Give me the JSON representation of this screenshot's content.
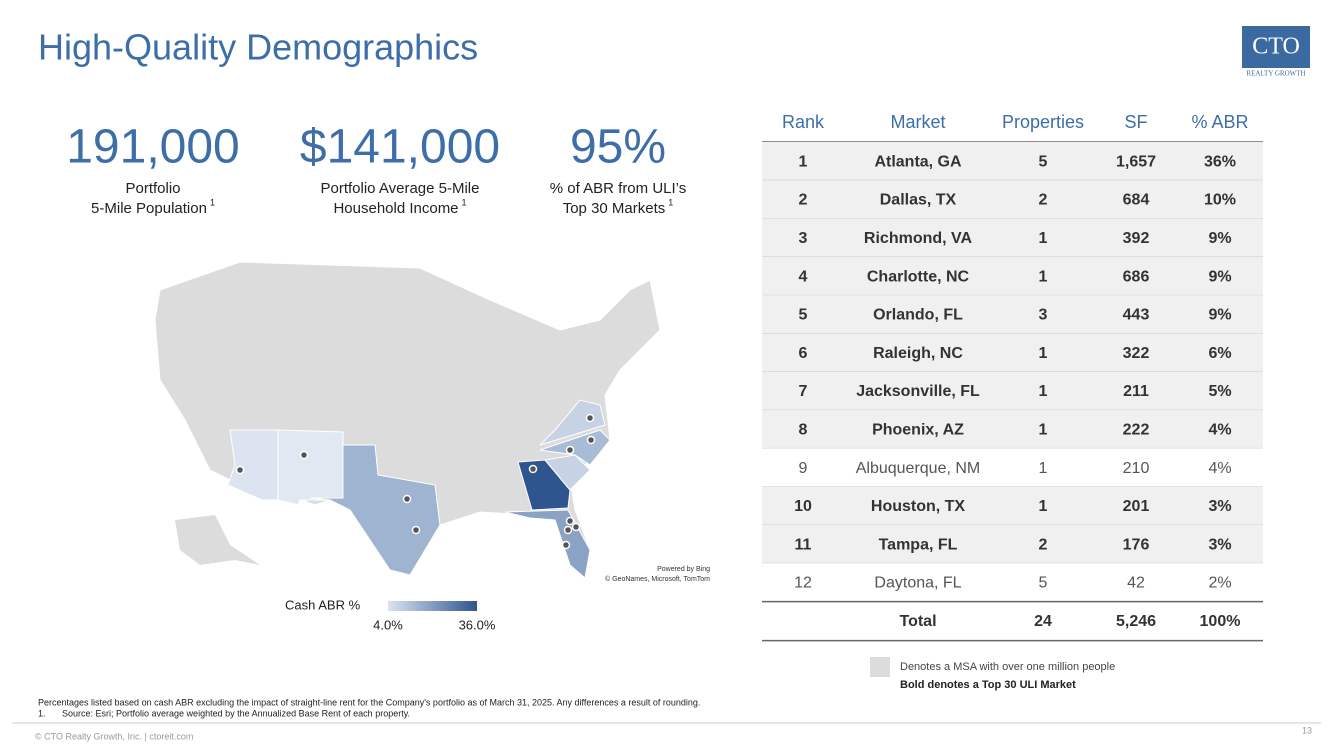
{
  "header": {
    "title": "High-Quality Demographics",
    "logo": "CTO",
    "logo_sub": "REALTY GROWTH"
  },
  "stats": [
    {
      "value": "191,000",
      "line1": "Portfolio",
      "line2": "5-Mile Population",
      "sup": "1"
    },
    {
      "value": "$141,000",
      "line1": "Portfolio Average 5-Mile",
      "line2": "Household Income",
      "sup": "1"
    },
    {
      "value": "95%",
      "line1": "% of ABR from ULI’s",
      "line2": "Top 30 Markets",
      "sup": "1"
    }
  ],
  "map": {
    "legend_title": "Cash ABR %",
    "legend_min": "4.0%",
    "legend_max": "36.0%",
    "attribution1": "Powered by Bing",
    "attribution2": "© GeoNames, Microsoft, TomTom"
  },
  "table": {
    "columns": [
      "Rank",
      "Market",
      "Properties",
      "SF",
      "% ABR"
    ],
    "rows": [
      {
        "cells": [
          "1",
          "Atlanta, GA",
          "5",
          "1,657",
          "36%"
        ],
        "bold": true
      },
      {
        "cells": [
          "2",
          "Dallas, TX",
          "2",
          "684",
          "10%"
        ],
        "bold": true
      },
      {
        "cells": [
          "3",
          "Richmond, VA",
          "1",
          "392",
          "9%"
        ],
        "bold": true
      },
      {
        "cells": [
          "4",
          "Charlotte, NC",
          "1",
          "686",
          "9%"
        ],
        "bold": true
      },
      {
        "cells": [
          "5",
          "Orlando, FL",
          "3",
          "443",
          "9%"
        ],
        "bold": true
      },
      {
        "cells": [
          "6",
          "Raleigh, NC",
          "1",
          "322",
          "6%"
        ],
        "bold": true
      },
      {
        "cells": [
          "7",
          "Jacksonville, FL",
          "1",
          "211",
          "5%"
        ],
        "bold": true
      },
      {
        "cells": [
          "8",
          "Phoenix, AZ",
          "1",
          "222",
          "4%"
        ],
        "bold": true
      },
      {
        "cells": [
          "9",
          "Albuquerque, NM",
          "1",
          "210",
          "4%"
        ],
        "bold": false
      },
      {
        "cells": [
          "10",
          "Houston, TX",
          "1",
          "201",
          "3%"
        ],
        "bold": true
      },
      {
        "cells": [
          "11",
          "Tampa, FL",
          "2",
          "176",
          "3%"
        ],
        "bold": true
      },
      {
        "cells": [
          "12",
          "Daytona, FL",
          "5",
          "42",
          "2%"
        ],
        "bold": false
      }
    ],
    "total": {
      "label": "Total",
      "properties": "24",
      "sf": "5,246",
      "abr": "100%"
    }
  },
  "key": {
    "msa": "Denotes a MSA with over one million people",
    "bold": "Bold denotes a Top 30 ULI Market"
  },
  "footnotes": {
    "general": "Percentages listed based on cash ABR excluding the impact of straight-line rent for the Company's portfolio as of March 31, 2025. Any differences a result of rounding.",
    "number": "1.",
    "source": "Source: Esri; Portfolio average weighted by the Annualized Base Rent of each property."
  },
  "footer": {
    "copyright": "© CTO Realty Growth, Inc. | ctoreit.com",
    "page": "13"
  }
}
